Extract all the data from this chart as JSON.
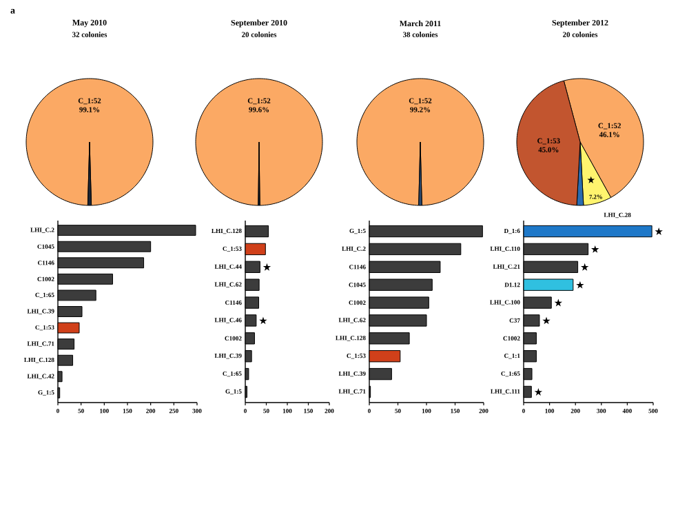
{
  "chart_data": [
    {
      "type": "pie",
      "title": "May 2010",
      "subtitle": "32 colonies",
      "categories": [
        "C_1:52",
        null
      ],
      "values": [
        99.1,
        0.9
      ],
      "colors": [
        "#fba964",
        "#1c2636"
      ],
      "value_labels": [
        "99.1%",
        null
      ],
      "annotations": [
        "a"
      ]
    },
    {
      "type": "pie",
      "title": "September 2010",
      "subtitle": "20 colonies",
      "categories": [
        "C_1:52",
        null
      ],
      "values": [
        99.6,
        0.4
      ],
      "colors": [
        "#fba964",
        "#1c2636"
      ],
      "value_labels": [
        "99.6%",
        null
      ]
    },
    {
      "type": "pie",
      "title": "March 2011",
      "subtitle": "38 colonies",
      "categories": [
        "C_1:52",
        null
      ],
      "values": [
        99.2,
        0.8
      ],
      "colors": [
        "#fba964",
        "#2b4a6e"
      ],
      "value_labels": [
        "99.2%",
        null
      ]
    },
    {
      "type": "pie",
      "title": "September 2012",
      "subtitle": "20 colonies",
      "categories": [
        "C_1:52",
        "LHI_C.28",
        null,
        "C_1:53"
      ],
      "values": [
        46.1,
        7.2,
        1.7,
        45.0
      ],
      "colors": [
        "#fba964",
        "#fff46e",
        "#2a6cb0",
        "#c2552f"
      ],
      "value_labels": [
        "46.1%",
        "7.2%",
        null,
        "45.0%"
      ],
      "annotations": [
        "★"
      ]
    },
    {
      "type": "bar",
      "orientation": "horizontal",
      "categories": [
        "LHI_C.2",
        "C1045",
        "C1146",
        "C1002",
        "C_1:65",
        "LHI_C.39",
        "C_1:53",
        "LHI_C.71",
        "LHI_C.128",
        "LHI_C.42",
        "G_1:5"
      ],
      "values": [
        297,
        200,
        185,
        118,
        82,
        52,
        46,
        35,
        32,
        9,
        4
      ],
      "colors": [
        "#3c3c3c",
        "#3c3c3c",
        "#3c3c3c",
        "#3c3c3c",
        "#3c3c3c",
        "#3c3c3c",
        "#d0401a",
        "#3c3c3c",
        "#3c3c3c",
        "#3c3c3c",
        "#3c3c3c"
      ],
      "xlim": [
        0,
        300
      ],
      "xticks": [
        0,
        50,
        100,
        150,
        200,
        250,
        300
      ]
    },
    {
      "type": "bar",
      "orientation": "horizontal",
      "categories": [
        "LHI_C.128",
        "C_1:53",
        "LHI_C.44",
        "LHI_C.62",
        "C1146",
        "LHI_C.46",
        "C1002",
        "LHI_C.39",
        "C_1:65",
        "G_1:5"
      ],
      "values": [
        55,
        48,
        35,
        33,
        32,
        26,
        22,
        15,
        8,
        4
      ],
      "colors": [
        "#3c3c3c",
        "#d0401a",
        "#3c3c3c",
        "#3c3c3c",
        "#3c3c3c",
        "#3c3c3c",
        "#3c3c3c",
        "#3c3c3c",
        "#3c3c3c",
        "#3c3c3c"
      ],
      "xlim": [
        0,
        200
      ],
      "xticks": [
        0,
        50,
        100,
        150,
        200
      ],
      "annotations": [
        {
          "text": "★",
          "x": 35,
          "y": "LHI_C.44"
        },
        {
          "text": "★",
          "x": 26,
          "y": "LHI_C.46"
        }
      ]
    },
    {
      "type": "bar",
      "orientation": "horizontal",
      "categories": [
        "G_1:5",
        "LHI_C.2",
        "C1146",
        "C1045",
        "C1002",
        "LHI_C.62",
        "LHI_C.128",
        "C_1:53",
        "LHI_C.39",
        "LHI_C.71"
      ],
      "values": [
        198,
        160,
        124,
        110,
        104,
        100,
        70,
        54,
        39,
        2
      ],
      "colors": [
        "#3c3c3c",
        "#3c3c3c",
        "#3c3c3c",
        "#3c3c3c",
        "#3c3c3c",
        "#3c3c3c",
        "#3c3c3c",
        "#d0401a",
        "#3c3c3c",
        "#3c3c3c"
      ],
      "xlim": [
        0,
        200
      ],
      "xticks": [
        0,
        50,
        100,
        150,
        200
      ]
    },
    {
      "type": "bar",
      "orientation": "horizontal",
      "categories": [
        "D_1:6",
        "LHI_C.110",
        "LHI_C.21",
        "D1.12",
        "LHI_C.100",
        "C37",
        "C1002",
        "C_1:1",
        "C_1:65",
        "LHI_C.111"
      ],
      "values": [
        495,
        249,
        209,
        191,
        107,
        61,
        49,
        49,
        32,
        30
      ],
      "colors": [
        "#1e78c8",
        "#3c3c3c",
        "#3c3c3c",
        "#30c0e0",
        "#3c3c3c",
        "#3c3c3c",
        "#3c3c3c",
        "#3c3c3c",
        "#3c3c3c",
        "#3c3c3c"
      ],
      "xlim": [
        0,
        500
      ],
      "xticks": [
        0,
        100,
        200,
        300,
        400,
        500
      ],
      "annotations": [
        {
          "text": "★",
          "x": 495,
          "y": "D_1:6"
        },
        {
          "text": "★",
          "x": 249,
          "y": "LHI_C.110"
        },
        {
          "text": "★",
          "x": 209,
          "y": "LHI_C.21"
        },
        {
          "text": "★",
          "x": 191,
          "y": "D1.12"
        },
        {
          "text": "★",
          "x": 107,
          "y": "LHI_C.100"
        },
        {
          "text": "★",
          "x": 61,
          "y": "C37"
        },
        {
          "text": "★",
          "x": 30,
          "y": "LHI_C.111"
        }
      ]
    }
  ]
}
